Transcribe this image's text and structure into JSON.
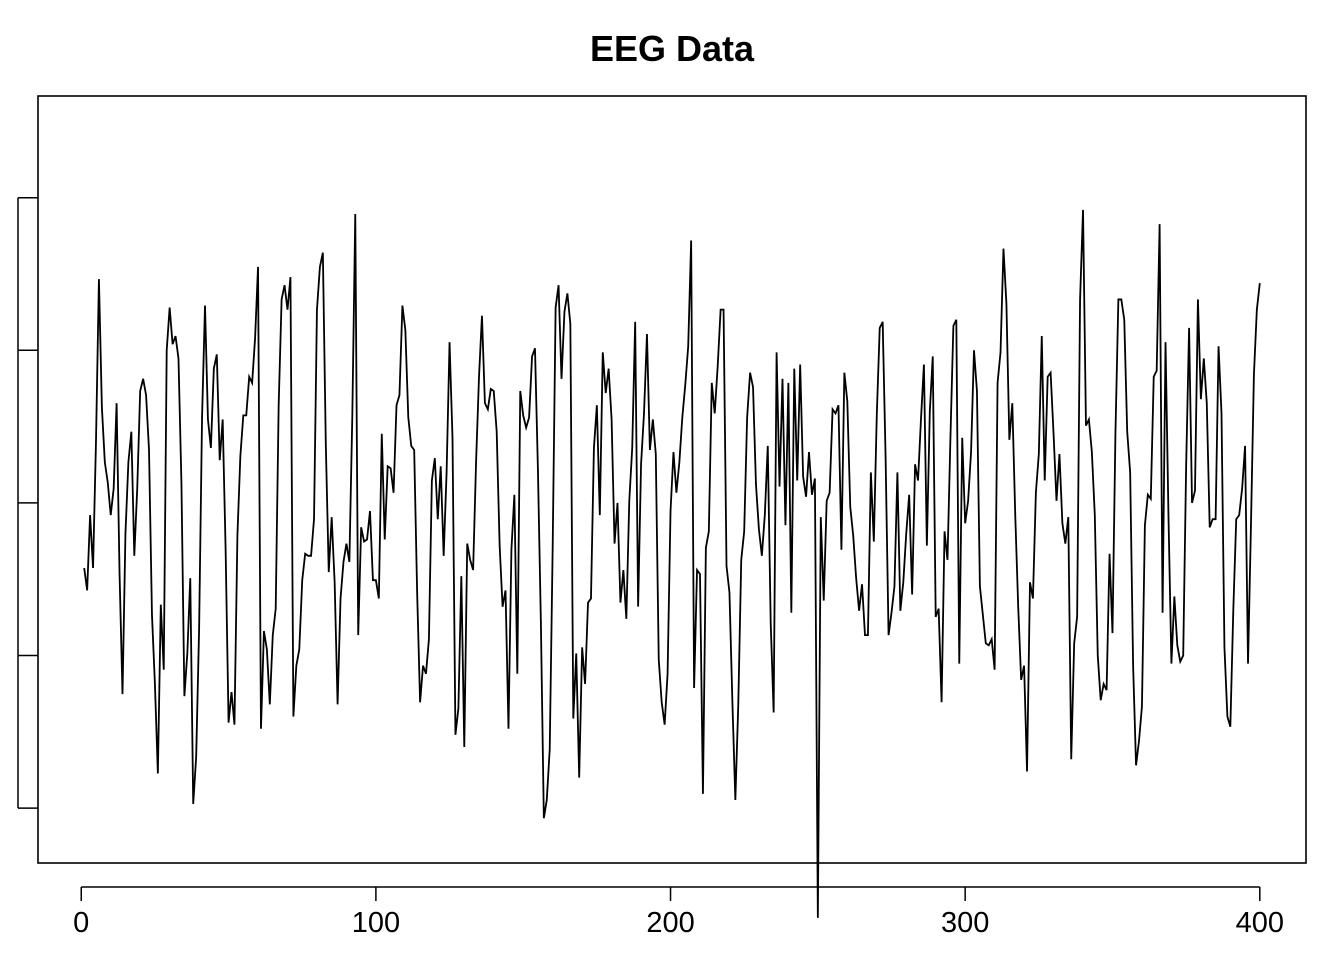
{
  "chart_data": {
    "type": "line",
    "title": "EEG Data",
    "xlabel": "",
    "ylabel": "",
    "xlim": [
      -14.68,
      415.68
    ],
    "ylim": [
      -1.77,
      2.0
    ],
    "x_ticks": [
      0,
      100,
      200,
      300,
      400
    ],
    "x_tick_labels": [
      "0",
      "100",
      "200",
      "300",
      "400"
    ],
    "y_ticks": [
      -1.5,
      -0.75,
      0.0,
      0.75,
      1.5
    ],
    "y_tick_labels": [
      "",
      "",
      "",
      "",
      ""
    ],
    "grid": false,
    "legend": "none",
    "series": [
      {
        "x_start": 1,
        "values": [
          -0.32,
          -0.43,
          -0.06,
          -0.32,
          0.3,
          1.1,
          0.47,
          0.2,
          0.1,
          -0.06,
          0.07,
          0.49,
          -0.35,
          -0.94,
          -0.15,
          0.2,
          0.35,
          -0.26,
          0.07,
          0.55,
          0.61,
          0.53,
          0.26,
          -0.55,
          -0.89,
          -1.33,
          -0.5,
          -0.82,
          0.75,
          0.96,
          0.78,
          0.82,
          0.71,
          0.1,
          -0.95,
          -0.74,
          -0.37,
          -1.48,
          -1.25,
          -0.62,
          0.42,
          0.97,
          0.41,
          0.27,
          0.66,
          0.73,
          0.21,
          0.41,
          -0.23,
          -1.08,
          -0.93,
          -1.09,
          -0.16,
          0.23,
          0.43,
          0.43,
          0.62,
          0.59,
          0.81,
          1.16,
          -1.11,
          -0.63,
          -0.72,
          -0.99,
          -0.65,
          -0.52,
          0.48,
          1.0,
          1.07,
          0.95,
          1.11,
          -1.05,
          -0.8,
          -0.72,
          -0.38,
          -0.25,
          -0.26,
          -0.26,
          -0.08,
          0.95,
          1.16,
          1.23,
          0.29,
          -0.34,
          -0.07,
          -0.39,
          -0.99,
          -0.47,
          -0.29,
          -0.2,
          -0.29,
          0.43,
          1.42,
          -0.65,
          -0.12,
          -0.19,
          -0.18,
          -0.04,
          -0.38,
          -0.38,
          -0.47,
          0.34,
          -0.18,
          0.18,
          0.17,
          0.05,
          0.48,
          0.53,
          0.97,
          0.85,
          0.42,
          0.28,
          0.26,
          -0.44,
          -0.98,
          -0.8,
          -0.84,
          -0.67,
          0.11,
          0.22,
          -0.08,
          0.18,
          -0.26,
          0.15,
          0.79,
          0.32,
          -1.14,
          -1.01,
          -0.36,
          -1.2,
          -0.2,
          -0.28,
          -0.33,
          0.2,
          0.62,
          0.92,
          0.49,
          0.46,
          0.56,
          0.55,
          0.35,
          -0.21,
          -0.51,
          -0.43,
          -1.11,
          -0.23,
          0.04,
          -0.84,
          0.55,
          0.43,
          0.37,
          0.42,
          0.72,
          0.76,
          0.16,
          -0.59,
          -1.55,
          -1.46,
          -1.21,
          -0.22,
          0.96,
          1.07,
          0.61,
          0.94,
          1.03,
          0.88,
          -1.06,
          -0.74,
          -1.35,
          -0.71,
          -0.89,
          -0.49,
          -0.47,
          0.27,
          0.48,
          -0.06,
          0.74,
          0.54,
          0.66,
          0.41,
          -0.2,
          0.0,
          -0.49,
          -0.33,
          -0.57,
          0.01,
          0.27,
          0.89,
          -0.51,
          0.19,
          0.44,
          0.83,
          0.26,
          0.41,
          0.24,
          -0.77,
          -0.98,
          -1.09,
          -0.84,
          -0.04,
          0.25,
          0.05,
          0.2,
          0.42,
          0.58,
          0.77,
          1.29,
          -0.91,
          -0.33,
          -0.35,
          -1.43,
          -0.22,
          -0.14,
          0.59,
          0.44,
          0.67,
          0.95,
          0.95,
          -0.31,
          -0.44,
          -0.98,
          -1.46,
          -0.99,
          -0.28,
          -0.14,
          0.42,
          0.64,
          0.57,
          0.09,
          -0.13,
          -0.26,
          -0.06,
          0.28,
          -0.59,
          -1.03,
          0.74,
          0.08,
          0.61,
          -0.11,
          0.59,
          -0.54,
          0.66,
          0.11,
          0.68,
          0.13,
          0.03,
          0.25,
          0.04,
          0.12,
          -2.04,
          -0.07,
          -0.48,
          0.01,
          0.05,
          0.46,
          0.44,
          0.48,
          -0.23,
          0.64,
          0.5,
          -0.02,
          -0.16,
          -0.37,
          -0.53,
          -0.4,
          -0.65,
          -0.65,
          0.15,
          -0.19,
          0.43,
          0.86,
          0.89,
          0.22,
          -0.65,
          -0.54,
          -0.41,
          0.15,
          -0.53,
          -0.39,
          -0.15,
          0.04,
          -0.45,
          0.19,
          0.11,
          0.41,
          0.68,
          -0.21,
          0.45,
          0.72,
          -0.56,
          -0.52,
          -0.98,
          -0.14,
          -0.28,
          0.32,
          0.87,
          0.9,
          -0.79,
          0.32,
          -0.1,
          0.01,
          0.25,
          0.75,
          0.55,
          -0.41,
          -0.55,
          -0.69,
          -0.7,
          -0.67,
          -0.82,
          0.59,
          0.74,
          1.25,
          0.98,
          0.31,
          0.49,
          -0.06,
          -0.51,
          -0.87,
          -0.8,
          -1.32,
          -0.39,
          -0.47,
          0.05,
          0.24,
          0.82,
          0.11,
          0.62,
          0.64,
          0.34,
          0.01,
          0.24,
          -0.1,
          -0.2,
          -0.07,
          -1.26,
          -0.69,
          -0.56,
          1.0,
          1.44,
          0.38,
          0.41,
          0.25,
          -0.06,
          -0.75,
          -0.97,
          -0.89,
          -0.92,
          -0.25,
          -0.64,
          0.34,
          1.0,
          1.0,
          0.9,
          0.35,
          0.15,
          -0.8,
          -1.29,
          -1.17,
          -1.0,
          -0.11,
          0.04,
          0.02,
          0.62,
          0.65,
          1.37,
          -0.54,
          0.79,
          -0.06,
          -0.79,
          -0.46,
          -0.7,
          -0.78,
          -0.75,
          0.18,
          0.86,
          0.0,
          0.06,
          1.0,
          0.51,
          0.71,
          0.49,
          -0.12,
          -0.08,
          -0.08,
          0.77,
          0.44,
          -0.71,
          -1.05,
          -1.1,
          -0.53,
          -0.08,
          -0.06,
          0.07,
          0.28,
          -0.79,
          -0.11,
          0.63,
          0.95,
          1.08
        ]
      }
    ]
  }
}
